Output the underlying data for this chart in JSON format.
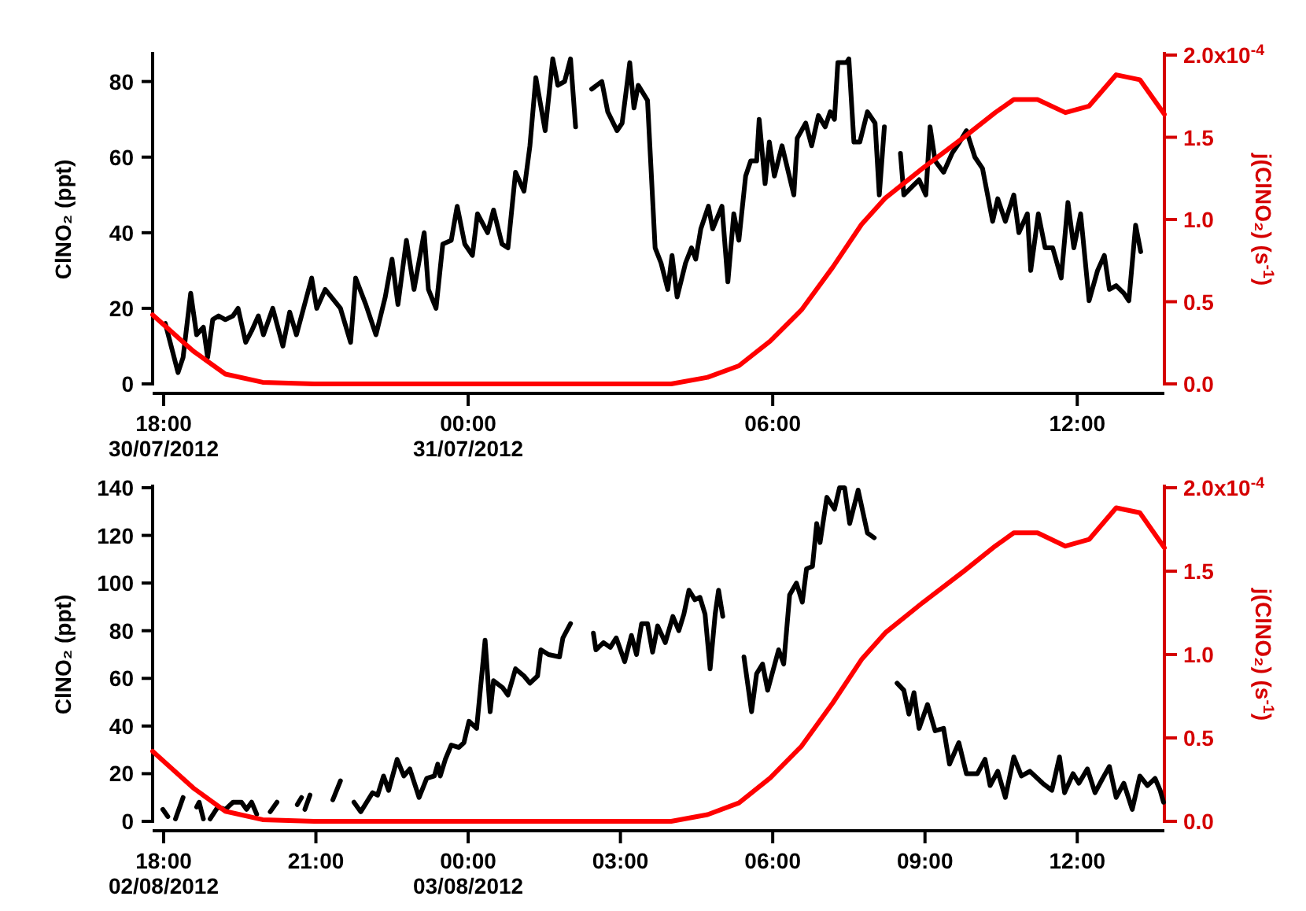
{
  "chart_data": [
    {
      "type": "line",
      "ylabel": "ClNO₂ (ppt)",
      "y2label": "j(ClNO₂) (s$^{-1}$)",
      "annotations": [
        "x10$^{-4}$"
      ],
      "xlim": [
        "2012-07-30T17:47",
        "2012-07-31T13:43"
      ],
      "xticks": [
        {
          "value": "2012-07-30T18:00",
          "label": "18:00\n30/07/2012"
        },
        {
          "value": "2012-07-31T00:00",
          "label": "00:00\n31/07/2012"
        },
        {
          "value": "2012-07-31T06:00",
          "label": "06:00"
        },
        {
          "value": "2012-07-31T12:00",
          "label": "12:00"
        }
      ],
      "ylim": [
        0,
        87
      ],
      "yticks": [
        0,
        20,
        40,
        60,
        80
      ],
      "y2lim": [
        0,
        2.0
      ],
      "y2ticks": [
        {
          "value": 0,
          "label": "0.0"
        },
        {
          "value": 0.5,
          "label": "0.5"
        },
        {
          "value": 1,
          "label": "1.0"
        },
        {
          "value": 1.5,
          "label": "1.5"
        },
        {
          "value": 2,
          "label": "2.0"
        }
      ],
      "grid": false,
      "line_style": "solid",
      "series": [
        {
          "color": "#000000",
          "x": [
            "2012-07-30T18:02",
            "2012-07-30T18:17",
            "2012-07-30T18:23",
            "2012-07-30T18:32",
            "2012-07-30T18:39",
            "2012-07-30T18:47",
            "2012-07-30T18:52",
            "2012-07-30T18:58",
            "2012-07-30T19:05",
            "2012-07-30T19:13",
            "2012-07-30T19:22",
            "2012-07-30T19:28",
            "2012-07-30T19:37",
            "2012-07-30T19:44",
            "2012-07-30T19:52",
            "2012-07-30T19:58",
            "2012-07-30T20:09",
            "2012-07-30T20:21",
            "2012-07-30T20:29",
            "2012-07-30T20:37",
            "2012-07-30T20:55",
            "2012-07-30T21:01",
            "2012-07-30T21:11",
            "2012-07-30T21:29",
            "2012-07-30T21:41",
            "2012-07-30T21:47",
            "2012-07-30T21:59",
            "2012-07-30T22:11",
            "2012-07-30T22:22",
            "2012-07-30T22:30",
            "2012-07-30T22:37",
            "2012-07-30T22:47",
            "2012-07-30T22:56",
            "2012-07-30T23:08",
            "2012-07-30T23:13",
            "2012-07-30T23:22",
            "2012-07-30T23:30",
            "2012-07-30T23:40",
            "2012-07-30T23:47",
            "2012-07-30T23:56",
            "2012-07-31T00:05",
            "2012-07-31T00:11",
            "2012-07-31T00:23",
            "2012-07-31T00:30",
            "2012-07-31T00:40",
            "2012-07-31T00:47",
            "2012-07-31T00:56",
            "2012-07-31T01:06",
            "2012-07-31T01:13",
            "2012-07-31T01:20",
            "2012-07-31T01:31",
            "2012-07-31T01:40",
            "2012-07-31T01:46",
            "2012-07-31T01:54",
            "2012-07-31T02:01",
            "2012-07-31T02:07",
            "2012-07-31T02:18",
            "2012-07-31T02:26",
            "2012-07-31T02:38",
            "2012-07-31T02:45",
            "2012-07-31T02:56",
            "2012-07-31T03:02",
            "2012-07-31T03:11",
            "2012-07-31T03:16",
            "2012-07-31T03:21",
            "2012-07-31T03:32",
            "2012-07-31T03:41",
            "2012-07-31T03:48",
            "2012-07-31T03:56",
            "2012-07-31T04:01",
            "2012-07-31T04:07",
            "2012-07-31T04:17",
            "2012-07-31T04:24",
            "2012-07-31T04:29",
            "2012-07-31T04:35",
            "2012-07-31T04:44",
            "2012-07-31T04:49",
            "2012-07-31T05:00",
            "2012-07-31T05:07",
            "2012-07-31T05:14",
            "2012-07-31T05:20",
            "2012-07-31T05:28",
            "2012-07-31T05:34",
            "2012-07-31T05:41",
            "2012-07-31T05:44",
            "2012-07-31T05:51",
            "2012-07-31T05:56",
            "2012-07-31T06:02",
            "2012-07-31T06:11",
            "2012-07-31T06:25",
            "2012-07-31T06:29",
            "2012-07-31T06:39",
            "2012-07-31T06:46",
            "2012-07-31T06:54",
            "2012-07-31T07:02",
            "2012-07-31T07:08",
            "2012-07-31T07:13",
            "2012-07-31T07:17",
            "2012-07-31T07:27",
            "2012-07-31T07:30",
            "2012-07-31T07:36",
            "2012-07-31T07:43",
            "2012-07-31T07:52",
            "2012-07-31T08:01",
            "2012-07-31T08:06",
            "2012-07-31T08:12",
            "2012-07-31T08:21",
            "2012-07-31T08:31",
            "2012-07-31T08:35",
            "2012-07-31T08:44",
            "2012-07-31T08:53",
            "2012-07-31T09:01",
            "2012-07-31T09:06",
            "2012-07-31T09:12",
            "2012-07-31T09:22",
            "2012-07-31T09:32",
            "2012-07-31T09:41",
            "2012-07-31T09:49",
            "2012-07-31T09:59",
            "2012-07-31T10:08",
            "2012-07-31T10:20",
            "2012-07-31T10:26",
            "2012-07-31T10:35",
            "2012-07-31T10:45",
            "2012-07-31T10:51",
            "2012-07-31T11:01",
            "2012-07-31T11:05",
            "2012-07-31T11:14",
            "2012-07-31T11:22",
            "2012-07-31T11:31",
            "2012-07-31T11:41",
            "2012-07-31T11:49",
            "2012-07-31T11:56",
            "2012-07-31T12:04",
            "2012-07-31T12:14",
            "2012-07-31T12:24",
            "2012-07-31T12:32",
            "2012-07-31T12:38",
            "2012-07-31T12:46",
            "2012-07-31T12:55",
            "2012-07-31T13:01",
            "2012-07-31T13:09",
            "2012-07-31T13:15"
          ],
          "values": [
            16,
            3,
            7,
            24,
            13,
            15,
            7,
            17,
            18,
            17,
            18,
            20,
            11,
            14,
            18,
            13,
            20,
            10,
            19,
            13,
            28,
            20,
            25,
            20,
            11,
            28,
            21,
            13,
            23,
            33,
            21,
            38,
            25,
            40,
            25,
            20,
            37,
            38,
            47,
            37,
            34,
            45,
            40,
            46,
            37,
            36,
            56,
            51,
            63,
            81,
            67,
            86,
            79,
            80,
            86,
            68,
            null,
            78,
            80,
            72,
            67,
            69,
            85,
            73,
            79,
            75,
            36,
            32,
            25,
            34,
            23,
            32,
            36,
            33,
            41,
            47,
            41,
            47,
            27,
            45,
            38,
            55,
            59,
            59,
            70,
            53,
            64,
            55,
            63,
            50,
            65,
            69,
            63,
            71,
            68,
            72,
            70,
            85,
            85,
            86,
            64,
            64,
            72,
            69,
            50,
            68,
            null,
            61,
            50,
            52,
            54,
            50,
            68,
            59,
            56,
            61,
            64,
            67,
            60,
            57,
            43,
            49,
            43,
            50,
            40,
            45,
            30,
            45,
            36,
            36,
            28,
            48,
            36,
            45,
            22,
            30,
            34,
            25,
            26,
            24,
            22,
            42,
            35
          ]
        },
        {
          "color": "#ff0000",
          "axis": "y2",
          "x": [
            "2012-07-30T17:47",
            "2012-07-30T18:35",
            "2012-07-30T19:13",
            "2012-07-30T19:57",
            "2012-07-30T20:58",
            "2012-07-31T04:00",
            "2012-07-31T04:43",
            "2012-07-31T05:20",
            "2012-07-31T05:57",
            "2012-07-31T06:34",
            "2012-07-31T07:11",
            "2012-07-31T07:45",
            "2012-07-31T08:13",
            "2012-07-31T08:57",
            "2012-07-31T09:46",
            "2012-07-31T10:23",
            "2012-07-31T10:45",
            "2012-07-31T11:13",
            "2012-07-31T11:46",
            "2012-07-31T12:14",
            "2012-07-31T12:46",
            "2012-07-31T13:14",
            "2012-07-31T13:43"
          ],
          "values": [
            0.42,
            0.2,
            0.06,
            0.01,
            0,
            0,
            0.04,
            0.11,
            0.26,
            0.45,
            0.71,
            0.97,
            1.13,
            1.31,
            1.5,
            1.65,
            1.73,
            1.73,
            1.65,
            1.69,
            1.88,
            1.85,
            1.64
          ]
        }
      ]
    },
    {
      "type": "line",
      "ylabel": "ClNO₂ (ppt)",
      "y2label": "j(ClNO₂) (s$^{-1}$)",
      "annotations": [
        "x10$^{-4}$"
      ],
      "xlim": [
        "2012-08-02T17:47",
        "2012-08-03T13:43"
      ],
      "xticks": [
        {
          "value": "2012-08-02T18:00",
          "label": "18:00\n02/08/2012"
        },
        {
          "value": "2012-08-02T21:00",
          "label": "21:00"
        },
        {
          "value": "2012-08-03T00:00",
          "label": "00:00\n03/08/2012"
        },
        {
          "value": "2012-08-03T03:00",
          "label": "03:00"
        },
        {
          "value": "2012-08-03T06:00",
          "label": "06:00"
        },
        {
          "value": "2012-08-03T09:00",
          "label": "09:00"
        },
        {
          "value": "2012-08-03T12:00",
          "label": "12:00"
        }
      ],
      "ylim": [
        0,
        140
      ],
      "yticks": [
        0,
        20,
        40,
        60,
        80,
        100,
        120,
        140
      ],
      "y2lim": [
        0,
        2.0
      ],
      "y2ticks": [
        {
          "value": 0,
          "label": "0.0"
        },
        {
          "value": 0.5,
          "label": "0.5"
        },
        {
          "value": 1,
          "label": "1.0"
        },
        {
          "value": 1.5,
          "label": "1.5"
        },
        {
          "value": 2,
          "label": "2.0"
        }
      ],
      "grid": false,
      "line_style": "solid",
      "series": [
        {
          "color": "#000000",
          "x": [
            "2012-08-02T17:59",
            "2012-08-02T18:05",
            "2012-08-02T18:10",
            "2012-08-02T18:14",
            "2012-08-02T18:23",
            "2012-08-02T18:30",
            "2012-08-02T18:39",
            "2012-08-02T18:42",
            "2012-08-02T18:47",
            "2012-08-02T18:51",
            "2012-08-02T18:55",
            "2012-08-02T19:04",
            "2012-08-02T19:13",
            "2012-08-02T19:22",
            "2012-08-02T19:32",
            "2012-08-02T19:38",
            "2012-08-02T19:44",
            "2012-08-02T19:50",
            "2012-08-02T19:57",
            "2012-08-02T20:06",
            "2012-08-02T20:14",
            "2012-08-02T20:24",
            "2012-08-02T20:38",
            "2012-08-02T20:43",
            "2012-08-02T20:45",
            "2012-08-02T20:47",
            "2012-08-02T20:53",
            "2012-08-02T21:12",
            "2012-08-02T21:20",
            "2012-08-02T21:29",
            "2012-08-02T21:36",
            "2012-08-02T21:45",
            "2012-08-02T21:53",
            "2012-08-02T22:07",
            "2012-08-02T22:13",
            "2012-08-02T22:20",
            "2012-08-02T22:26",
            "2012-08-02T22:36",
            "2012-08-02T22:44",
            "2012-08-02T22:51",
            "2012-08-02T23:02",
            "2012-08-02T23:11",
            "2012-08-02T23:20",
            "2012-08-02T23:24",
            "2012-08-02T23:27",
            "2012-08-02T23:33",
            "2012-08-02T23:40",
            "2012-08-02T23:49",
            "2012-08-02T23:55",
            "2012-08-03T00:01",
            "2012-08-03T00:10",
            "2012-08-03T00:20",
            "2012-08-03T00:26",
            "2012-08-03T00:30",
            "2012-08-03T00:41",
            "2012-08-03T00:47",
            "2012-08-03T00:56",
            "2012-08-03T01:06",
            "2012-08-03T01:13",
            "2012-08-03T01:22",
            "2012-08-03T01:26",
            "2012-08-03T01:35",
            "2012-08-03T01:48",
            "2012-08-03T01:52",
            "2012-08-03T02:01",
            "2012-08-03T02:12",
            "2012-08-03T02:28",
            "2012-08-03T02:31",
            "2012-08-03T02:40",
            "2012-08-03T02:48",
            "2012-08-03T02:55",
            "2012-08-03T03:05",
            "2012-08-03T03:13",
            "2012-08-03T03:19",
            "2012-08-03T03:25",
            "2012-08-03T03:32",
            "2012-08-03T03:38",
            "2012-08-03T03:44",
            "2012-08-03T03:53",
            "2012-08-03T04:02",
            "2012-08-03T04:09",
            "2012-08-03T04:15",
            "2012-08-03T04:21",
            "2012-08-03T04:28",
            "2012-08-03T04:34",
            "2012-08-03T04:40",
            "2012-08-03T04:46",
            "2012-08-03T04:52",
            "2012-08-03T04:56",
            "2012-08-03T05:01",
            "2012-08-03T05:12",
            "2012-08-03T05:26",
            "2012-08-03T05:35",
            "2012-08-03T05:41",
            "2012-08-03T05:48",
            "2012-08-03T05:54",
            "2012-08-03T06:07",
            "2012-08-03T06:13",
            "2012-08-03T06:20",
            "2012-08-03T06:28",
            "2012-08-03T06:35",
            "2012-08-03T06:40",
            "2012-08-03T06:47",
            "2012-08-03T06:52",
            "2012-08-03T06:56",
            "2012-08-03T07:04",
            "2012-08-03T07:13",
            "2012-08-03T07:19",
            "2012-08-03T07:25",
            "2012-08-03T07:31",
            "2012-08-03T07:41",
            "2012-08-03T07:52",
            "2012-08-03T08:00",
            "2012-08-03T08:12",
            "2012-08-03T08:27",
            "2012-08-03T08:35",
            "2012-08-03T08:41",
            "2012-08-03T08:47",
            "2012-08-03T08:53",
            "2012-08-03T09:03",
            "2012-08-03T09:12",
            "2012-08-03T09:22",
            "2012-08-03T09:29",
            "2012-08-03T09:40",
            "2012-08-03T09:49",
            "2012-08-03T10:02",
            "2012-08-03T10:11",
            "2012-08-03T10:17",
            "2012-08-03T10:26",
            "2012-08-03T10:35",
            "2012-08-03T10:45",
            "2012-08-03T10:54",
            "2012-08-03T11:04",
            "2012-08-03T11:19",
            "2012-08-03T11:30",
            "2012-08-03T11:39",
            "2012-08-03T11:45",
            "2012-08-03T11:55",
            "2012-08-03T12:02",
            "2012-08-03T12:12",
            "2012-08-03T12:21",
            "2012-08-03T12:30",
            "2012-08-03T12:38",
            "2012-08-03T12:46",
            "2012-08-03T12:55",
            "2012-08-03T13:05",
            "2012-08-03T13:14",
            "2012-08-03T13:23",
            "2012-08-03T13:32",
            "2012-08-03T13:38",
            "2012-08-03T13:42"
          ],
          "values": [
            5,
            2,
            null,
            1,
            10,
            null,
            6,
            8,
            1,
            null,
            1,
            6,
            5,
            8,
            8,
            5,
            8,
            3,
            null,
            4,
            8,
            null,
            7,
            10,
            null,
            5,
            11,
            null,
            9,
            17,
            null,
            8,
            4,
            12,
            11,
            19,
            13,
            26,
            19,
            22,
            10,
            18,
            19,
            24,
            19,
            26,
            32,
            31,
            33,
            42,
            39,
            76,
            46,
            59,
            56,
            53,
            64,
            61,
            58,
            61,
            72,
            70,
            69,
            77,
            83,
            null,
            79,
            72,
            75,
            73,
            77,
            67,
            78,
            70,
            83,
            83,
            71,
            82,
            75,
            86,
            80,
            87,
            97,
            93,
            94,
            87,
            64,
            87,
            97,
            86,
            null,
            69,
            46,
            62,
            66,
            55,
            72,
            66,
            95,
            100,
            92,
            106,
            107,
            125,
            117,
            136,
            131,
            140,
            140,
            125,
            139,
            121,
            119,
            null,
            58,
            55,
            45,
            54,
            39,
            49,
            38,
            39,
            24,
            33,
            20,
            20,
            26,
            15,
            21,
            10,
            27,
            19,
            21,
            16,
            13,
            27,
            12,
            20,
            16,
            22,
            12,
            18,
            23,
            10,
            16,
            5,
            19,
            15,
            18,
            13,
            8
          ]
        },
        {
          "color": "#ff0000",
          "axis": "y2",
          "x": [
            "2012-08-02T17:47",
            "2012-08-02T18:35",
            "2012-08-02T19:13",
            "2012-08-02T19:57",
            "2012-08-02T20:58",
            "2012-08-03T04:00",
            "2012-08-03T04:43",
            "2012-08-03T05:20",
            "2012-08-03T05:57",
            "2012-08-03T06:34",
            "2012-08-03T07:11",
            "2012-08-03T07:45",
            "2012-08-03T08:13",
            "2012-08-03T08:57",
            "2012-08-03T09:46",
            "2012-08-03T10:23",
            "2012-08-03T10:45",
            "2012-08-03T11:13",
            "2012-08-03T11:46",
            "2012-08-03T12:14",
            "2012-08-03T12:46",
            "2012-08-03T13:14",
            "2012-08-03T13:43"
          ],
          "values": [
            0.42,
            0.2,
            0.06,
            0.01,
            0,
            0,
            0.04,
            0.11,
            0.26,
            0.45,
            0.71,
            0.97,
            1.13,
            1.31,
            1.5,
            1.65,
            1.73,
            1.73,
            1.65,
            1.69,
            1.88,
            1.85,
            1.64
          ]
        }
      ]
    }
  ]
}
